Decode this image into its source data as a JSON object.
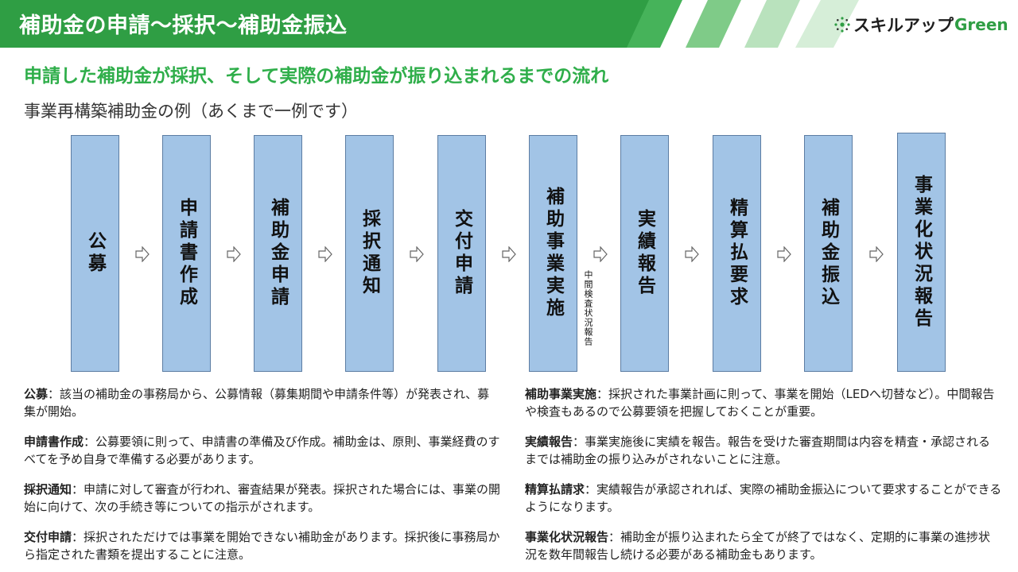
{
  "header": {
    "title": "補助金の申請〜採択〜補助金振込",
    "logo": {
      "jp": "スキルアップ",
      "en": "Green"
    }
  },
  "subtitle": "申請した補助金が採択、そして実際の補助金が振り込まれるまでの流れ",
  "example": "事業再構築補助金の例（あくまで一例です）",
  "steps": [
    "公募",
    "申請書作成",
    "補助金申請",
    "採択通知",
    "交付申請",
    "補助事業実施",
    "実績報告",
    "精算払要求",
    "補助金振込",
    "事業化状況報告"
  ],
  "interim_note": "中間検査状況報告",
  "descriptions": [
    {
      "term": "公募",
      "text": "：該当の補助金の事務局から、公募情報（募集期間や申請条件等）が発表され、募集が開始。"
    },
    {
      "term": "申請書作成",
      "text": "：公募要領に則って、申請書の準備及び作成。補助金は、原則、事業経費のすべてを予め自身で準備する必要があります。"
    },
    {
      "term": "採択通知",
      "text": "：申請に対して審査が行われ、審査結果が発表。採択された場合には、事業の開始に向けて、次の手続き等についての指示がされます。"
    },
    {
      "term": "交付申請",
      "text": "：採択されただけでは事業を開始できない補助金があります。採択後に事務局から指定された書類を提出することに注意。"
    },
    {
      "term": "補助事業実施",
      "text": "：採択された事業計画に則って、事業を開始（LEDへ切替など）。中間報告や検査もあるので公募要領を把握しておくことが重要。"
    },
    {
      "term": "実績報告",
      "text": "：事業実施後に実績を報告。報告を受けた審査期間は内容を精査・承認されるまでは補助金の振り込みがされないことに注意。"
    },
    {
      "term": "精算払請求",
      "text": "：実績報告が承認されれば、実際の補助金振込について要求することができるようになります。"
    },
    {
      "term": "事業化状況報告",
      "text": "：補助金が振り込まれたら全てが終了ではなく、定期的に事業の進捗状況を数年間報告し続ける必要がある補助金もあります。"
    }
  ],
  "colors": {
    "brand_green": "#2f9e44",
    "subtitle_green": "#2fae4a",
    "step_fill": "#a2c4e6",
    "step_border": "#5c7da3"
  }
}
